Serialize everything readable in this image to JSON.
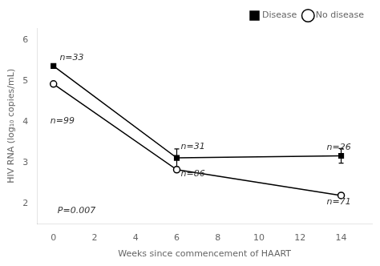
{
  "chart_data": {
    "type": "line",
    "x_label": "Weeks since commencement of HAART",
    "y_label": "HIV RNA (log₁₀ copies/mL)",
    "x": [
      0,
      6,
      14
    ],
    "series": [
      {
        "name": "Disease",
        "color": "#000000",
        "marker": "filled_square",
        "line_style": "solid",
        "values": [
          5.37,
          3.12,
          3.17
        ],
        "errors": [
          0.0,
          0.22,
          0.18
        ]
      },
      {
        "name": "No disease",
        "color": "#000000",
        "marker": "open_circle",
        "line_style": "solid",
        "values": [
          4.93,
          2.83,
          2.2
        ],
        "errors": [
          0.0,
          0.0,
          0.0
        ]
      }
    ],
    "annotations": [
      {
        "text": "n=33",
        "x": 0.3,
        "y": 5.46
      },
      {
        "text": "n=31",
        "x": 6.2,
        "y": 3.28
      },
      {
        "text": "n=26",
        "x": 13.3,
        "y": 3.27
      },
      {
        "text": "n=99",
        "x": -0.15,
        "y": 3.92
      },
      {
        "text": "n=86",
        "x": 6.2,
        "y": 2.62
      },
      {
        "text": "n=71",
        "x": 13.3,
        "y": 1.93
      },
      {
        "text": "P=0.007",
        "x": 0.2,
        "y": 1.72
      }
    ],
    "xlim": [
      -0.8,
      15.5
    ],
    "ylim": [
      1.5,
      6.3
    ],
    "xticks": [
      0,
      2,
      4,
      6,
      8,
      10,
      12,
      14
    ],
    "yticks": [
      2,
      3,
      4,
      5,
      6
    ],
    "grid": false,
    "legend": "upper right"
  }
}
